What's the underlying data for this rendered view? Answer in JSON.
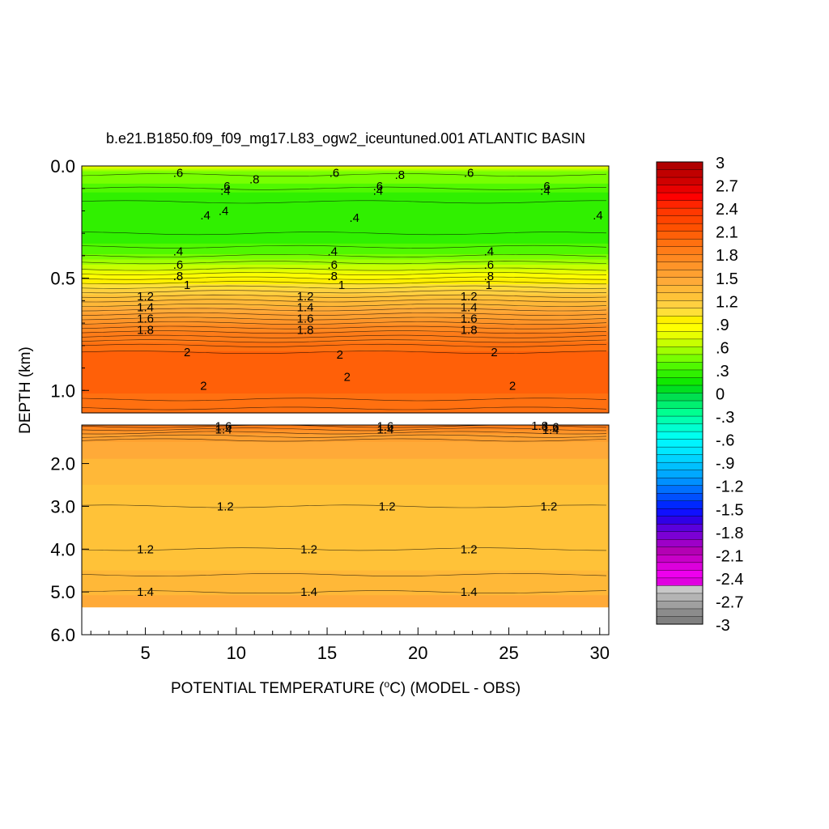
{
  "chart_data": {
    "type": "heatmap",
    "title": "b.e21.B1850.f09_f09_mg17.L83_ogw2_iceuntuned.001 ATLANTIC BASIN",
    "xlabel": "POTENTIAL TEMPERATURE (",
    "xlabel_sup": "o",
    "xlabel_tail": "C) (MODEL - OBS)",
    "ylabel": "DEPTH (km)",
    "xlim": [
      1.5,
      30.5
    ],
    "x_ticks": [
      "5",
      "10",
      "15",
      "20",
      "25",
      "30"
    ],
    "x_tick_values": [
      5,
      10,
      15,
      20,
      25,
      30
    ],
    "upper_panel": {
      "ylim": [
        0.0,
        1.1
      ],
      "y_ticks": [
        "0.0",
        "0.5",
        "1.0"
      ],
      "y_tick_values": [
        0.0,
        0.5,
        1.0
      ]
    },
    "lower_panel": {
      "ylim": [
        1.1,
        6.0
      ],
      "y_ticks": [
        "2.0",
        "3.0",
        "4.0",
        "5.0",
        "6.0"
      ],
      "y_tick_values": [
        2.0,
        3.0,
        4.0,
        5.0,
        6.0
      ],
      "data_bottom_depth": 5.35
    },
    "depth_profile": [
      {
        "depth": 0.0,
        "value": 0.75
      },
      {
        "depth": 0.03,
        "value": 0.45
      },
      {
        "depth": 0.08,
        "value": 0.4
      },
      {
        "depth": 0.15,
        "value": 0.2
      },
      {
        "depth": 0.3,
        "value": 0.22
      },
      {
        "depth": 0.38,
        "value": 0.35
      },
      {
        "depth": 0.45,
        "value": 0.65
      },
      {
        "depth": 0.5,
        "value": 0.9
      },
      {
        "depth": 0.6,
        "value": 1.3
      },
      {
        "depth": 0.72,
        "value": 1.75
      },
      {
        "depth": 0.85,
        "value": 2.05
      },
      {
        "depth": 0.95,
        "value": 2.1
      },
      {
        "depth": 1.05,
        "value": 1.95
      },
      {
        "depth": 1.1,
        "value": 1.9
      },
      {
        "depth": 1.3,
        "value": 1.6
      },
      {
        "depth": 1.6,
        "value": 1.45
      },
      {
        "depth": 2.5,
        "value": 1.3
      },
      {
        "depth": 3.5,
        "value": 1.2
      },
      {
        "depth": 4.5,
        "value": 1.3
      },
      {
        "depth": 5.35,
        "value": 1.45
      }
    ],
    "contour_lines_upper": [
      0.04,
      0.1,
      0.16,
      0.3,
      0.36,
      0.4,
      0.43,
      0.46,
      0.48,
      0.5,
      0.52,
      0.54,
      0.56,
      0.58,
      0.6,
      0.62,
      0.64,
      0.66,
      0.68,
      0.7,
      0.72,
      0.74,
      0.76,
      0.78,
      0.8,
      0.83,
      1.04,
      1.08
    ],
    "contour_lines_lower": [
      1.13,
      1.2,
      1.28,
      1.36,
      1.45,
      3.0,
      4.0,
      4.6,
      5.0
    ],
    "contour_labels": [
      {
        "text": ".6",
        "x": 6.8,
        "depth": 0.03
      },
      {
        "text": ".6",
        "x": 15.4,
        "depth": 0.03
      },
      {
        "text": ".8",
        "x": 19.0,
        "depth": 0.04
      },
      {
        "text": ".6",
        "x": 22.8,
        "depth": 0.03
      },
      {
        "text": ".8",
        "x": 11.0,
        "depth": 0.06
      },
      {
        "text": ".6",
        "x": 9.4,
        "depth": 0.09
      },
      {
        "text": ".4",
        "x": 9.4,
        "depth": 0.11
      },
      {
        "text": ".6",
        "x": 17.8,
        "depth": 0.09
      },
      {
        "text": ".4",
        "x": 17.8,
        "depth": 0.11
      },
      {
        "text": ".6",
        "x": 27.0,
        "depth": 0.09
      },
      {
        "text": ".4",
        "x": 27.0,
        "depth": 0.11
      },
      {
        "text": ".4",
        "x": 8.3,
        "depth": 0.22
      },
      {
        "text": ".4",
        "x": 9.3,
        "depth": 0.2
      },
      {
        "text": ".4",
        "x": 16.5,
        "depth": 0.23
      },
      {
        "text": ".4",
        "x": 29.9,
        "depth": 0.22
      },
      {
        "text": ".4",
        "x": 6.8,
        "depth": 0.38
      },
      {
        "text": ".4",
        "x": 15.3,
        "depth": 0.38
      },
      {
        "text": ".4",
        "x": 23.9,
        "depth": 0.38
      },
      {
        "text": ".6",
        "x": 6.8,
        "depth": 0.44
      },
      {
        "text": ".6",
        "x": 15.3,
        "depth": 0.44
      },
      {
        "text": ".6",
        "x": 23.9,
        "depth": 0.44
      },
      {
        "text": ".8",
        "x": 6.8,
        "depth": 0.49
      },
      {
        "text": ".8",
        "x": 15.3,
        "depth": 0.49
      },
      {
        "text": ".8",
        "x": 23.9,
        "depth": 0.49
      },
      {
        "text": "1",
        "x": 7.3,
        "depth": 0.53
      },
      {
        "text": "1",
        "x": 15.8,
        "depth": 0.53
      },
      {
        "text": "1",
        "x": 23.9,
        "depth": 0.53
      },
      {
        "text": "1.2",
        "x": 5.0,
        "depth": 0.58
      },
      {
        "text": "1.2",
        "x": 13.8,
        "depth": 0.58
      },
      {
        "text": "1.2",
        "x": 22.8,
        "depth": 0.58
      },
      {
        "text": "1.4",
        "x": 5.0,
        "depth": 0.63
      },
      {
        "text": "1.4",
        "x": 13.8,
        "depth": 0.63
      },
      {
        "text": "1.4",
        "x": 22.8,
        "depth": 0.63
      },
      {
        "text": "1.6",
        "x": 5.0,
        "depth": 0.68
      },
      {
        "text": "1.6",
        "x": 13.8,
        "depth": 0.68
      },
      {
        "text": "1.6",
        "x": 22.8,
        "depth": 0.68
      },
      {
        "text": "1.8",
        "x": 5.0,
        "depth": 0.73
      },
      {
        "text": "1.8",
        "x": 13.8,
        "depth": 0.73
      },
      {
        "text": "1.8",
        "x": 22.8,
        "depth": 0.73
      },
      {
        "text": "2",
        "x": 7.3,
        "depth": 0.83
      },
      {
        "text": "2",
        "x": 15.7,
        "depth": 0.84
      },
      {
        "text": "2",
        "x": 24.2,
        "depth": 0.83
      },
      {
        "text": "2",
        "x": 16.1,
        "depth": 0.94
      },
      {
        "text": "2",
        "x": 8.2,
        "depth": 0.98
      },
      {
        "text": "2",
        "x": 25.2,
        "depth": 0.98
      },
      {
        "text": "1.8",
        "x": 26.7,
        "depth": 1.12
      },
      {
        "text": "1.6",
        "x": 9.3,
        "depth": 1.13
      },
      {
        "text": "1.6",
        "x": 18.2,
        "depth": 1.13
      },
      {
        "text": "1.6",
        "x": 27.3,
        "depth": 1.15
      },
      {
        "text": "1.4",
        "x": 9.3,
        "depth": 1.2
      },
      {
        "text": "1.4",
        "x": 18.2,
        "depth": 1.2
      },
      {
        "text": "1.4",
        "x": 27.3,
        "depth": 1.21
      },
      {
        "text": "1.2",
        "x": 9.4,
        "depth": 3.0
      },
      {
        "text": "1.2",
        "x": 18.3,
        "depth": 3.0
      },
      {
        "text": "1.2",
        "x": 27.2,
        "depth": 3.0
      },
      {
        "text": "1.2",
        "x": 5.0,
        "depth": 4.0
      },
      {
        "text": "1.2",
        "x": 14.0,
        "depth": 4.0
      },
      {
        "text": "1.2",
        "x": 22.8,
        "depth": 4.0
      },
      {
        "text": "1.4",
        "x": 5.0,
        "depth": 5.0
      },
      {
        "text": "1.4",
        "x": 14.0,
        "depth": 5.0
      },
      {
        "text": "1.4",
        "x": 22.8,
        "depth": 5.0
      }
    ],
    "colorbar": {
      "levels": [
        -3.0,
        -2.9,
        -2.8,
        -2.7,
        -2.6,
        -2.5,
        -2.4,
        -2.3,
        -2.2,
        -2.1,
        -2.0,
        -1.9,
        -1.8,
        -1.7,
        -1.6,
        -1.5,
        -1.4,
        -1.3,
        -1.2,
        -1.1,
        -1.0,
        -0.9,
        -0.8,
        -0.7,
        -0.6,
        -0.5,
        -0.4,
        -0.3,
        -0.2,
        -0.1,
        0.0,
        0.1,
        0.2,
        0.3,
        0.4,
        0.5,
        0.6,
        0.7,
        0.8,
        0.9,
        1.0,
        1.1,
        1.2,
        1.3,
        1.4,
        1.5,
        1.6,
        1.7,
        1.8,
        1.9,
        2.0,
        2.1,
        2.2,
        2.3,
        2.4,
        2.5,
        2.6,
        2.7,
        2.8,
        2.9,
        3.0
      ],
      "tick_labels": [
        "3",
        "2.7",
        "2.4",
        "2.1",
        "1.8",
        "1.5",
        "1.2",
        ".9",
        ".6",
        ".3",
        "0",
        "-.3",
        "-.6",
        "-.9",
        "-1.2",
        "-1.5",
        "-1.8",
        "-2.1",
        "-2.4",
        "-2.7",
        "-3"
      ],
      "colors": [
        "#808080",
        "#8c8c8c",
        "#a0a0a0",
        "#b4b4b4",
        "#c8c8c8",
        "#e000e0",
        "#ee00ee",
        "#dc00dc",
        "#c800c8",
        "#b400b4",
        "#9d00c8",
        "#7b00d4",
        "#5a00dc",
        "#3000e6",
        "#1010ff",
        "#0028ff",
        "#0050ff",
        "#0070ff",
        "#0090ff",
        "#00a8ff",
        "#00c0ff",
        "#00d4ff",
        "#00e8ff",
        "#00f4ff",
        "#00ffee",
        "#00ffd0",
        "#00ffb0",
        "#00ff90",
        "#00f070",
        "#00e050",
        "#00e020",
        "#10e800",
        "#30f000",
        "#50f800",
        "#78ff00",
        "#a0ff00",
        "#c8ff00",
        "#e8ff00",
        "#ffff00",
        "#fff000",
        "#ffe038",
        "#ffd040",
        "#ffc238",
        "#ffb838",
        "#ffaa38",
        "#ffa030",
        "#ff9428",
        "#ff8820",
        "#ff7c18",
        "#ff7010",
        "#ff6008",
        "#ff5000",
        "#ff4400",
        "#ff3800",
        "#ff2400",
        "#ff0000",
        "#e80000",
        "#d00000",
        "#c00000",
        "#b00000"
      ]
    }
  }
}
